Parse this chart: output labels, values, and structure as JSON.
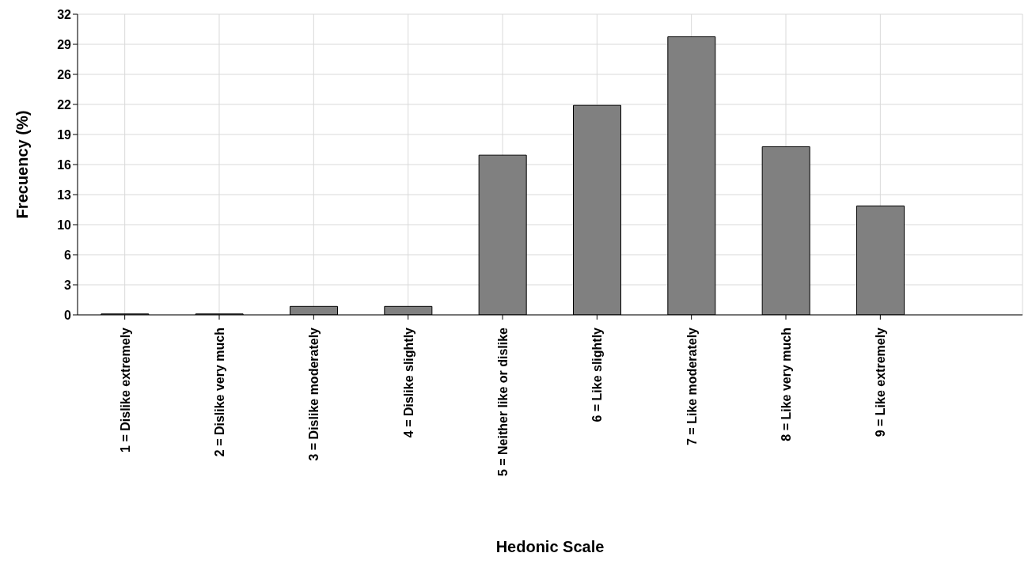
{
  "chart_data": {
    "type": "bar",
    "xlabel": "Hedonic Scale",
    "ylabel": "Frecuency (%)",
    "categories": [
      "1 = Dislike extremely",
      "2 = Dislike very much",
      "3 = Dislike moderately",
      "4 = Dislike slightly",
      "5 = Neither like or dislike",
      "6 = Like slightly",
      "7 = Like moderately",
      "8 = Like very much",
      "9 = Like extremely"
    ],
    "values": [
      0.1,
      0.1,
      0.9,
      0.9,
      17.0,
      22.3,
      29.6,
      17.9,
      11.6
    ],
    "color": "#808080",
    "ylim": [
      0,
      32
    ],
    "yticks": [
      {
        "value": 0,
        "label": "0"
      },
      {
        "value": 3.2,
        "label": "3"
      },
      {
        "value": 6.4,
        "label": "6"
      },
      {
        "value": 9.6,
        "label": "10"
      },
      {
        "value": 12.8,
        "label": "13"
      },
      {
        "value": 16,
        "label": "16"
      },
      {
        "value": 19.2,
        "label": "19"
      },
      {
        "value": 22.4,
        "label": "22"
      },
      {
        "value": 25.6,
        "label": "26"
      },
      {
        "value": 28.8,
        "label": "29"
      },
      {
        "value": 32,
        "label": "32"
      }
    ],
    "grid": true
  }
}
